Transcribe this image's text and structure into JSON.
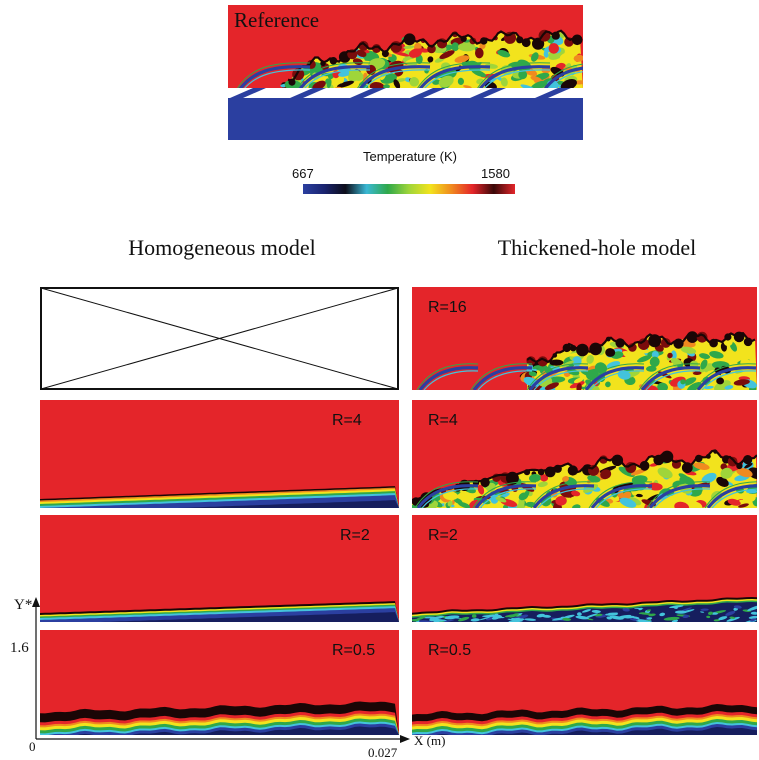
{
  "reference": {
    "label": "Reference"
  },
  "colorbar": {
    "title": "Temperature (K)",
    "min_label": "667",
    "max_label": "1580",
    "colors": [
      "#2b3fa0",
      "#1a2470",
      "#0d0d1a",
      "#3ab8d4",
      "#2fa84a",
      "#9fd53a",
      "#f2e31d",
      "#f08a1f",
      "#e4252a",
      "#3a0808",
      "#e4252a"
    ]
  },
  "columns": {
    "left_title": "Homogeneous model",
    "right_title": "Thickened-hole model"
  },
  "panels": {
    "left": {
      "row2": "R=4",
      "row3": "R=2",
      "row4": "R=0.5"
    },
    "right": {
      "row1": "R=16",
      "row2": "R=4",
      "row3": "R=2",
      "row4": "R=0.5"
    }
  },
  "axes": {
    "y_label": "Y*",
    "y_max": "1.6",
    "origin": "0",
    "x_max": "0.027",
    "x_label": "X (m)"
  },
  "palette": {
    "red": "#e4252a",
    "blue": "#2b3fa0",
    "navy": "#161e5e",
    "black": "#1a0606",
    "darkred": "#7a0c0c",
    "orange": "#f08a1f",
    "yellow": "#f2e31d",
    "lime": "#9fd53a",
    "green": "#2fa84a",
    "cyan": "#43c3dc",
    "white": "#ffffff"
  }
}
